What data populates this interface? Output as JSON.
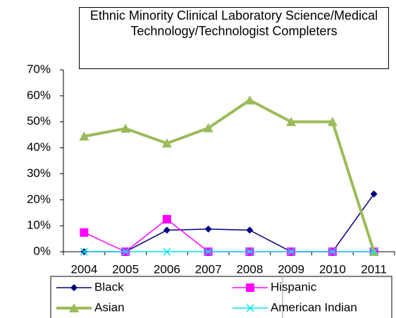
{
  "chart_data": {
    "type": "line",
    "title": "Ethnic Minority Clinical Laboratory Science/Medical Technology/Technologist Completers",
    "categories": [
      "2004",
      "2005",
      "2006",
      "2007",
      "2008",
      "2009",
      "2010",
      "2011"
    ],
    "series": [
      {
        "name": "Black",
        "color": "#000080",
        "marker": "diamond",
        "values": [
          0,
          0,
          8.3,
          8.7,
          8.3,
          0,
          0,
          22.2
        ]
      },
      {
        "name": "Hispanic",
        "color": "#ff00ff",
        "marker": "square",
        "values": [
          7.4,
          0,
          12.5,
          0,
          0,
          0,
          0,
          0
        ]
      },
      {
        "name": "Asian",
        "color": "#9bbb59",
        "marker": "triangle",
        "values": [
          44.4,
          47.4,
          41.7,
          47.6,
          58.3,
          50,
          50,
          0
        ]
      },
      {
        "name": "American Indian",
        "color": "#00e5ee",
        "marker": "x",
        "values": [
          0,
          0,
          0,
          0,
          0,
          0,
          0,
          0
        ]
      }
    ],
    "ylim": [
      0,
      70
    ],
    "yticks": [
      {
        "value": 0,
        "label": "0%"
      },
      {
        "value": 10,
        "label": "10%"
      },
      {
        "value": 20,
        "label": "20%"
      },
      {
        "value": 30,
        "label": "30%"
      },
      {
        "value": 40,
        "label": "40%"
      },
      {
        "value": 50,
        "label": "50%"
      },
      {
        "value": 60,
        "label": "60%"
      },
      {
        "value": 70,
        "label": "70%"
      }
    ],
    "legend": "bottom"
  }
}
